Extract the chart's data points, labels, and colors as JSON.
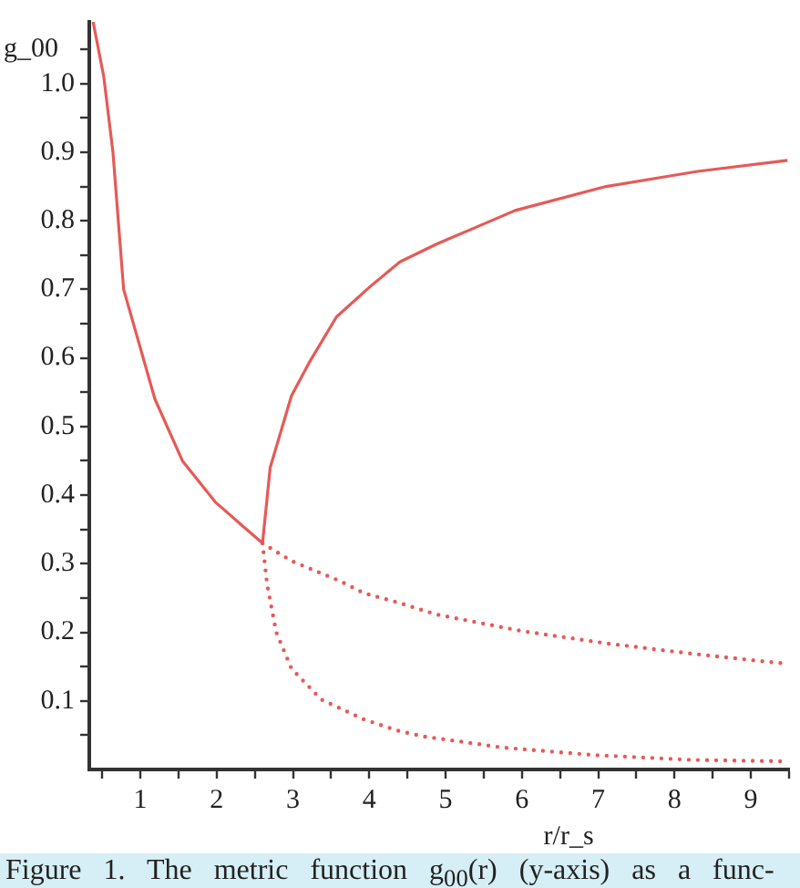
{
  "chart_data": {
    "type": "line",
    "xlabel": "r/r_s",
    "ylabel": "g_00",
    "annotations": [
      "Figure 1. The metric function g$_{00}$(r) (y-axis) as a func-"
    ],
    "xlim": [
      0.33,
      9.5
    ],
    "ylim": [
      0,
      1.09
    ],
    "xticks": [
      {
        "value": 0.5,
        "label": null
      },
      1,
      {
        "value": 1.5,
        "label": null
      },
      2,
      {
        "value": 2.5,
        "label": null
      },
      3,
      {
        "value": 3.5,
        "label": null
      },
      4,
      {
        "value": 4.5,
        "label": null
      },
      5,
      {
        "value": 5.5,
        "label": null
      },
      6,
      {
        "value": 6.5,
        "label": null
      },
      7,
      {
        "value": 7.5,
        "label": null
      },
      8,
      {
        "value": 8.5,
        "label": null
      },
      9,
      {
        "value": 9.5,
        "label": null
      }
    ],
    "yticks": [
      {
        "value": 0.05,
        "label": null
      },
      0.1,
      {
        "value": 0.15,
        "label": null
      },
      0.2,
      {
        "value": 0.25,
        "label": null
      },
      0.3,
      {
        "value": 0.35,
        "label": null
      },
      0.4,
      {
        "value": 0.45,
        "label": null
      },
      0.5,
      {
        "value": 0.55,
        "label": null
      },
      0.6,
      {
        "value": 0.65,
        "label": null
      },
      0.7,
      {
        "value": 0.75,
        "label": null
      },
      0.8,
      {
        "value": 0.85,
        "label": null
      },
      0.9,
      {
        "value": 0.95,
        "label": null
      },
      {
        "value": 1,
        "label": "1.0"
      },
      {
        "value": 1.05,
        "label": null
      }
    ],
    "grid": false,
    "marker": "none",
    "series": [
      {
        "color": "#e55a57",
        "line_style": "solid",
        "x": [
          0.38,
          0.52,
          0.64,
          0.78,
          1.19,
          1.55,
          1.98,
          2.34,
          2.6,
          2.7,
          2.98,
          3.21,
          3.57,
          4.01,
          4.4,
          4.88,
          5.91,
          7.1,
          8.3,
          9.48
        ],
        "values": [
          1.09,
          1.01,
          0.9,
          0.7,
          0.54,
          0.45,
          0.39,
          0.355,
          0.33,
          0.44,
          0.545,
          0.593,
          0.66,
          0.704,
          0.74,
          0.766,
          0.815,
          0.85,
          0.872,
          0.888
        ]
      },
      {
        "color": "#e55a57",
        "line_style": "dotted",
        "x": [
          2.6,
          2.98,
          3.61,
          3.93,
          4.36,
          4.88,
          5.99,
          7.1,
          8.21,
          9.4
        ],
        "values": [
          0.33,
          0.304,
          0.275,
          0.257,
          0.244,
          0.226,
          0.202,
          0.184,
          0.169,
          0.155
        ]
      },
      {
        "color": "#e55a57",
        "line_style": "dotted",
        "x": [
          2.6,
          2.66,
          2.78,
          2.98,
          3.37,
          3.93,
          4.36,
          4.72,
          5.75,
          6.95,
          8.21,
          9.4
        ],
        "values": [
          0.33,
          0.27,
          0.2,
          0.147,
          0.102,
          0.073,
          0.057,
          0.048,
          0.032,
          0.021,
          0.014,
          0.012
        ]
      }
    ]
  }
}
